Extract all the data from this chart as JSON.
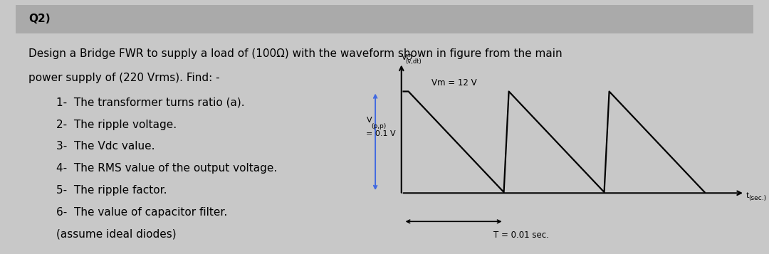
{
  "fig_w": 10.8,
  "fig_h": 3.57,
  "outer_bg": "#c8c8c8",
  "inner_bg": "#ffffff",
  "title_bar_color": "#aaaaaa",
  "title_text": "Q2)",
  "title_fontsize": 11,
  "body_line1": "Design a Bridge FWR to supply a load of (100Ω) with the waveform shown in figure from the main",
  "body_line2": "power supply of (220 Vrms). Find: -",
  "items": [
    "1-  The transformer turns ratio (a).",
    "2-  The ripple voltage.",
    "3-  The Vdc value.",
    "4-  The RMS value of the output voltage.",
    "5-  The ripple factor.",
    "6-  The value of capacitor filter.",
    "(assume ideal diodes)"
  ],
  "body_fontsize": 11,
  "item_fontsize": 11,
  "Vm": 12,
  "Vmin": 0.1,
  "T": 0.01,
  "num_cycles": 3,
  "wave_color": "#000000",
  "axis_color": "#000000",
  "blue_arrow_color": "#4169e1",
  "dashed_color": "#5b9bd5",
  "label_Vm": "Vm = 12 V",
  "label_Vo": "VO",
  "label_Vo_sub": "(v,dt)",
  "label_Vpp_line1": "V",
  "label_Vpp_sub": "(p,p)",
  "label_Vpp_line2": "= 0.1 V",
  "label_T": "T = 0.01 sec.",
  "label_t": "t",
  "label_t_sub": "(sec.)"
}
